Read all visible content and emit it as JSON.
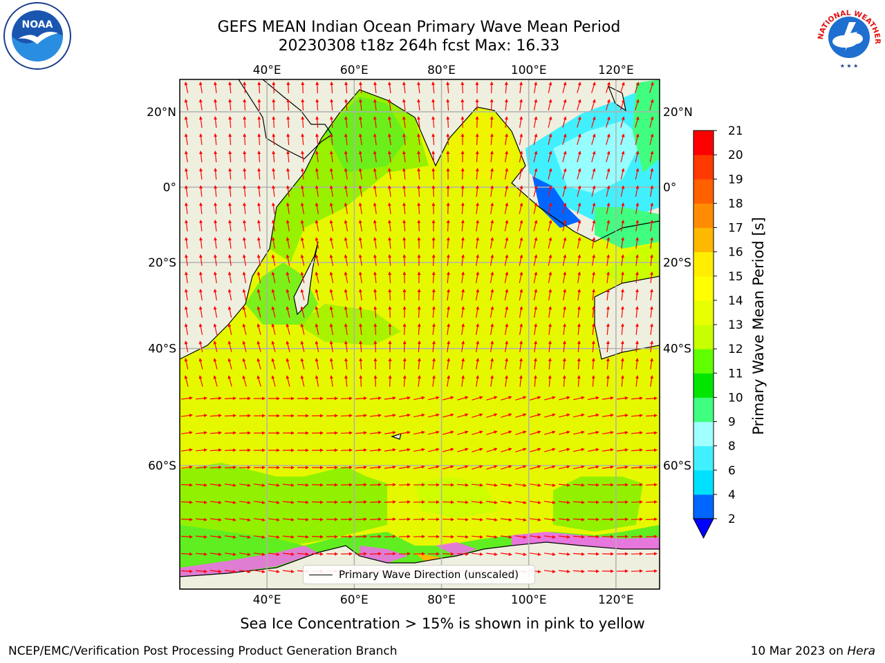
{
  "header": {
    "title_line1": "GEFS MEAN Indian Ocean Primary Wave Mean Period",
    "title_line2": "20230308 t18z 264h fcst   Max: 16.33"
  },
  "logos": {
    "noaa": {
      "text": "NOAA",
      "ring_text": "NATIONAL OCEANIC AND ATMOSPHERIC ADMINISTRATION · U.S. DEPARTMENT OF COMMERCE",
      "icon": "noaa-gull-logo-icon"
    },
    "nws": {
      "ring_text": "NATIONAL WEATHER SERVICE",
      "icon": "nws-storm-logo-icon"
    }
  },
  "map": {
    "lon_ticks": [
      "40°E",
      "60°E",
      "80°E",
      "100°E",
      "120°E"
    ],
    "lat_ticks": [
      "20°N",
      "0°",
      "20°S",
      "40°S",
      "60°S"
    ],
    "lon_range": [
      20,
      130
    ],
    "lat_range": [
      -73,
      28
    ],
    "grid": true,
    "land_color": "#efefdf",
    "arrow_color": "#ff0000"
  },
  "legend": {
    "label": "Primary Wave Direction (unscaled)",
    "position": "lower center"
  },
  "colorbar": {
    "label": "Primary Wave Mean Period [s]",
    "ticks": [
      "2",
      "4",
      "6",
      "8",
      "9",
      "10",
      "11",
      "12",
      "13",
      "14",
      "15",
      "16",
      "17",
      "18",
      "19",
      "20",
      "21"
    ],
    "colors": [
      "#0066ff",
      "#00e0ff",
      "#40f0ff",
      "#a0ffff",
      "#40ff80",
      "#00e600",
      "#60ff00",
      "#c8ff00",
      "#e8ff00",
      "#ffff00",
      "#ffee00",
      "#ffb800",
      "#ff8c00",
      "#ff6000",
      "#ff3a00",
      "#ff0000"
    ],
    "extend_low_color": "#0000ff"
  },
  "caption": "Sea Ice Concentration > 15% is shown in pink to yellow",
  "footer": {
    "left": "NCEP/EMC/Verification Post Processing Product Generation Branch",
    "right_prefix": "10 Mar 2023 on ",
    "right_host": "Hera"
  }
}
